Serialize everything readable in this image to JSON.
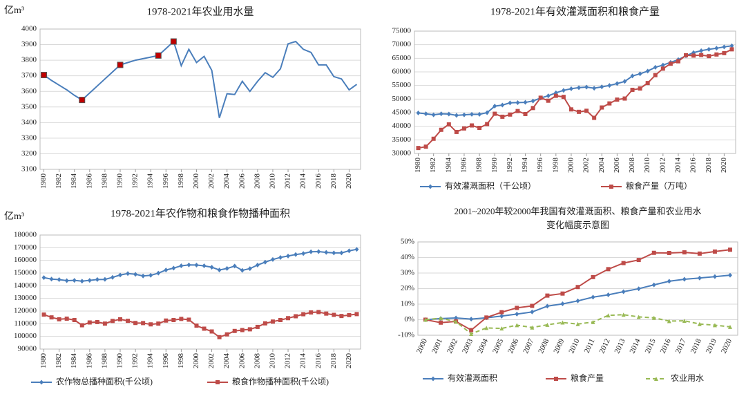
{
  "chart_data": [
    {
      "type": "line",
      "title": "1978-2021年农业用水量",
      "ylabel": "亿m³",
      "x": [
        1980,
        1981,
        1982,
        1983,
        1984,
        1985,
        1986,
        1987,
        1988,
        1989,
        1990,
        1991,
        1992,
        1993,
        1994,
        1995,
        1996,
        1997,
        1998,
        1999,
        2000,
        2001,
        2002,
        2003,
        2004,
        2005,
        2006,
        2007,
        2008,
        2009,
        2010,
        2011,
        2012,
        2013,
        2014,
        2015,
        2016,
        2017,
        2018,
        2019,
        2020,
        2021
      ],
      "xlim": [
        1979.5,
        2021.5
      ],
      "xticks": [
        1980,
        1982,
        1984,
        1986,
        1988,
        1990,
        1992,
        1994,
        1996,
        1998,
        2000,
        2002,
        2004,
        2006,
        2008,
        2010,
        2012,
        2014,
        2016,
        2018,
        2020
      ],
      "ylim": [
        3100,
        4000
      ],
      "yticks": [
        3100,
        3200,
        3300,
        3400,
        3500,
        3600,
        3700,
        3800,
        3900,
        4000
      ],
      "grid": true,
      "series": [
        {
          "color": "#4a7ebb",
          "marker": "none",
          "values": [
            3705,
            3670,
            3640,
            3610,
            3575,
            3545,
            3590,
            3635,
            3680,
            3725,
            3770,
            3785,
            3800,
            3810,
            3820,
            3830,
            3875,
            3920,
            3765,
            3870,
            3785,
            3825,
            3735,
            3430,
            3585,
            3580,
            3665,
            3600,
            3665,
            3720,
            3690,
            3745,
            3905,
            3920,
            3870,
            3850,
            3770,
            3770,
            3695,
            3680,
            3610,
            3645
          ]
        },
        {
          "color": "#c00000",
          "marker": "square",
          "line": false,
          "values": [
            3705,
            null,
            null,
            null,
            null,
            3545,
            null,
            null,
            null,
            null,
            3770,
            null,
            null,
            null,
            null,
            3830,
            null,
            3920,
            null,
            null,
            null,
            null,
            null,
            null,
            null,
            null,
            null,
            null,
            null,
            null,
            null,
            null,
            null,
            null,
            null,
            null,
            null,
            null,
            null,
            null,
            null,
            null
          ]
        }
      ]
    },
    {
      "type": "line",
      "title": "1978-2021年有效灌溉面积和粮食产量",
      "x": [
        1980,
        1981,
        1982,
        1983,
        1984,
        1985,
        1986,
        1987,
        1988,
        1989,
        1990,
        1991,
        1992,
        1993,
        1994,
        1995,
        1996,
        1997,
        1998,
        1999,
        2000,
        2001,
        2002,
        2003,
        2004,
        2005,
        2006,
        2007,
        2008,
        2009,
        2010,
        2011,
        2012,
        2013,
        2014,
        2015,
        2016,
        2017,
        2018,
        2019,
        2020,
        2021
      ],
      "xlim": [
        1979.5,
        2021.5
      ],
      "xticks": [
        1980,
        1982,
        1984,
        1986,
        1988,
        1990,
        1992,
        1994,
        1996,
        1998,
        2000,
        2002,
        2004,
        2006,
        2008,
        2010,
        2012,
        2014,
        2016,
        2018,
        2020
      ],
      "ylim": [
        30000,
        75000
      ],
      "yticks": [
        30000,
        35000,
        40000,
        45000,
        50000,
        55000,
        60000,
        65000,
        70000,
        75000
      ],
      "grid": true,
      "series": [
        {
          "name": "有效灌溉面积（千公顷）",
          "color": "#4a7ebb",
          "marker": "diamond",
          "values": [
            44900,
            44600,
            44200,
            44600,
            44500,
            44000,
            44200,
            44400,
            44400,
            45000,
            47400,
            47800,
            48600,
            48700,
            48800,
            49300,
            50400,
            51200,
            52300,
            53200,
            53800,
            54200,
            54400,
            54000,
            54500,
            55000,
            55700,
            56500,
            58500,
            59300,
            60300,
            61700,
            62500,
            63500,
            64500,
            65900,
            67100,
            67800,
            68300,
            68700,
            69200,
            69600
          ]
        },
        {
          "name": "粮食产量（万吨）",
          "color": "#be4b48",
          "marker": "square",
          "values": [
            32000,
            32500,
            35400,
            38700,
            40700,
            37900,
            39200,
            40300,
            39400,
            40800,
            44600,
            43500,
            44300,
            45600,
            44500,
            46700,
            50500,
            49400,
            51200,
            50800,
            46200,
            45300,
            45700,
            43100,
            46900,
            48400,
            49800,
            50200,
            53400,
            53900,
            55900,
            58800,
            61200,
            63000,
            63900,
            66100,
            66000,
            66200,
            65800,
            66400,
            66900,
            68300
          ]
        }
      ]
    },
    {
      "type": "line",
      "title": "1978-2021年农作物和粮食作物播种面积",
      "ylabel": "亿m³",
      "x": [
        1980,
        1981,
        1982,
        1983,
        1984,
        1985,
        1986,
        1987,
        1988,
        1989,
        1990,
        1991,
        1992,
        1993,
        1994,
        1995,
        1996,
        1997,
        1998,
        1999,
        2000,
        2001,
        2002,
        2003,
        2004,
        2005,
        2006,
        2007,
        2008,
        2009,
        2010,
        2011,
        2012,
        2013,
        2014,
        2015,
        2016,
        2017,
        2018,
        2019,
        2020,
        2021
      ],
      "xlim": [
        1979.5,
        2021.5
      ],
      "xticks": [
        1980,
        1982,
        1984,
        1986,
        1988,
        1990,
        1992,
        1994,
        1996,
        1998,
        2000,
        2002,
        2004,
        2006,
        2008,
        2010,
        2012,
        2014,
        2016,
        2018,
        2020
      ],
      "ylim": [
        90000,
        180000
      ],
      "yticks": [
        90000,
        100000,
        110000,
        120000,
        130000,
        140000,
        150000,
        160000,
        170000,
        180000
      ],
      "grid": true,
      "series": [
        {
          "name": "农作物总播种面积(千公顷)",
          "color": "#4a7ebb",
          "marker": "diamond",
          "values": [
            146400,
            145200,
            144800,
            144000,
            144200,
            143600,
            144200,
            144900,
            145000,
            146600,
            148400,
            149600,
            149000,
            147700,
            148200,
            149900,
            152400,
            153900,
            155700,
            156400,
            156300,
            155700,
            154600,
            152400,
            153600,
            155500,
            152100,
            153500,
            156300,
            158600,
            160700,
            162300,
            163400,
            164600,
            165400,
            166800,
            166900,
            166300,
            165900,
            165900,
            167500,
            168700
          ]
        },
        {
          "name": "粮食作物播种面积(千公顷)",
          "color": "#be4b48",
          "marker": "square",
          "values": [
            117200,
            115000,
            113500,
            114000,
            112900,
            108800,
            111000,
            111300,
            110100,
            112200,
            113500,
            112300,
            110600,
            110500,
            109500,
            110100,
            112500,
            112900,
            113800,
            113200,
            108500,
            106100,
            103900,
            99400,
            101600,
            104300,
            105000,
            105600,
            107500,
            110300,
            111700,
            112900,
            114400,
            115900,
            117500,
            118900,
            119200,
            118000,
            117000,
            116100,
            116800,
            117600
          ]
        }
      ]
    },
    {
      "type": "line",
      "title": "2001~2020年较2000年我国有效灌溉面积、粮食产量和农业用水",
      "subtitle": "变化幅度示意图",
      "categories": [
        "2000",
        "2001",
        "2002",
        "2003",
        "2004",
        "2005",
        "2006",
        "2007",
        "2008",
        "2009",
        "2010",
        "2011",
        "2012",
        "2013",
        "2014",
        "2015",
        "2016",
        "2017",
        "2018",
        "2019",
        "2020"
      ],
      "ylim": [
        -10,
        50
      ],
      "yticks": [
        {
          "value": -10,
          "label": "-10%"
        },
        {
          "value": 0,
          "label": "0%"
        },
        {
          "value": 10,
          "label": "10%"
        },
        {
          "value": 20,
          "label": "20%"
        },
        {
          "value": 30,
          "label": "30%"
        },
        {
          "value": 40,
          "label": "40%"
        },
        {
          "value": 50,
          "label": "50%"
        }
      ],
      "grid": true,
      "series": [
        {
          "name": "有效灌溉面积",
          "color": "#4a7ebb",
          "marker": "diamond",
          "values": [
            0,
            0.7,
            1.1,
            0.4,
            1.2,
            2.3,
            3.6,
            5.0,
            8.7,
            10.2,
            12.1,
            14.5,
            16.0,
            18.0,
            19.9,
            22.4,
            24.7,
            26.0,
            26.8,
            27.7,
            28.6
          ]
        },
        {
          "name": "粮食产量",
          "color": "#be4b48",
          "marker": "square",
          "values": [
            0,
            -1.9,
            -1.1,
            -6.7,
            1.4,
            4.8,
            7.6,
            8.9,
            15.5,
            16.8,
            21.0,
            27.4,
            32.5,
            36.4,
            38.4,
            43.0,
            42.9,
            43.3,
            42.5,
            43.8,
            45.0
          ]
        },
        {
          "name": "农业用水",
          "color": "#98b954",
          "marker": "triangle",
          "dash": true,
          "values": [
            0,
            1.0,
            -1.3,
            -9.1,
            -5.3,
            -5.6,
            -3.5,
            -5.0,
            -3.3,
            -1.8,
            -2.8,
            -1.5,
            2.8,
            3.2,
            1.8,
            1.2,
            -0.9,
            -0.7,
            -2.8,
            -3.5,
            -4.6
          ]
        }
      ]
    }
  ]
}
